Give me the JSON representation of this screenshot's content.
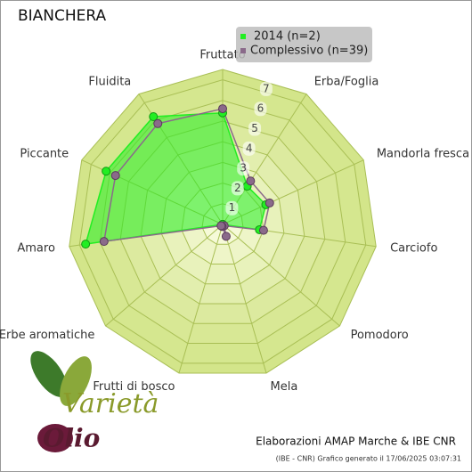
{
  "chart_data": {
    "type": "radar",
    "title": "BIANCHERA",
    "categories": [
      "Fruttato",
      "Erba/Foglia",
      "Mandorla fresca",
      "Carciofo",
      "Pomodoro",
      "Mela",
      "Frutti di bosco",
      "Erbe aromatiche",
      "Amaro",
      "Piccante",
      "Fluidita"
    ],
    "series": [
      {
        "name": "2014 (n=2)",
        "color": "#22ee22",
        "values": [
          5.4,
          2.2,
          2.3,
          1.8,
          0,
          0,
          0,
          0,
          6.7,
          6.2,
          6.2
        ]
      },
      {
        "name": "Complessivo (n=39)",
        "color": "#8a6a8a",
        "values": [
          5.6,
          2.5,
          2.5,
          2.0,
          0.1,
          0.6,
          0.1,
          0.1,
          5.8,
          5.7,
          5.8
        ]
      }
    ],
    "ylim": [
      0,
      7.5
    ],
    "yticks": [
      1,
      2,
      3,
      4,
      5,
      6,
      7
    ],
    "grid": true,
    "legend": "top-right",
    "credit": "Elaborazioni AMAP Marche & IBE CNR",
    "footnote": "(IBE - CNR) Grafico generato il 17/06/2025 03:07:31",
    "logo": {
      "line1": "Varietà",
      "line2": "Olio"
    }
  }
}
